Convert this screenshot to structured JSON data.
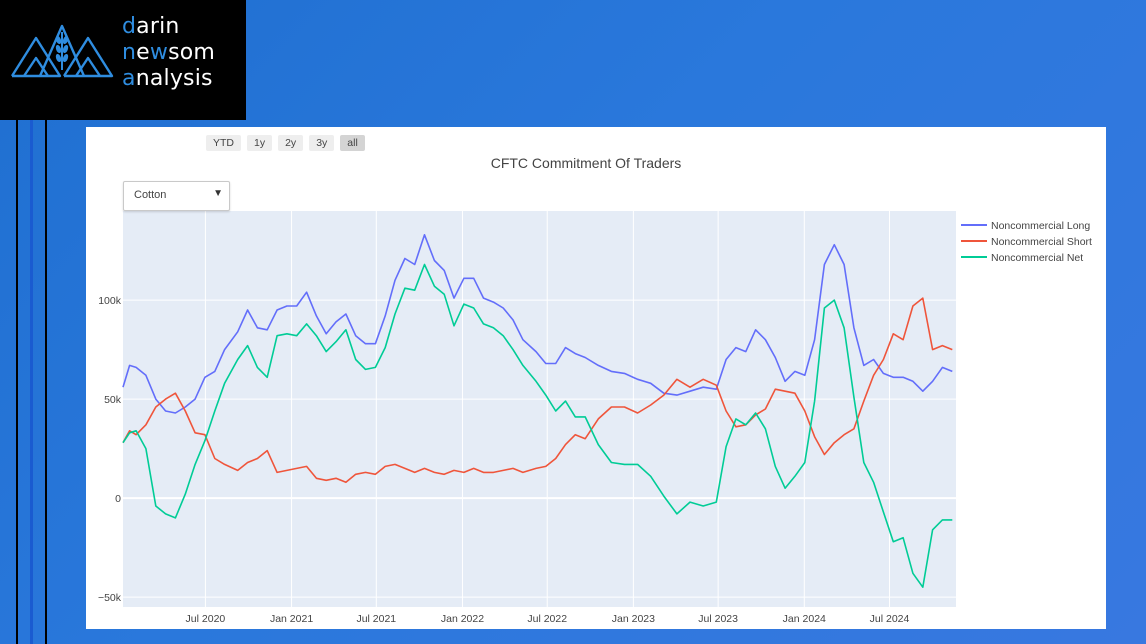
{
  "logo": {
    "line1_hl": "d",
    "line1_rest": "arin",
    "line2_a": "n",
    "line2_b": "e",
    "line2_hl": "w",
    "line2_rest": "som",
    "line3_hl": "a",
    "line3_rest": "nalysis"
  },
  "range_selector": [
    "YTD",
    "1y",
    "2y",
    "3y",
    "all"
  ],
  "range_selected": "all",
  "dropdown": {
    "value": "Cotton"
  },
  "colors": {
    "long": "#636efa",
    "short": "#ef553b",
    "net": "#00cc96",
    "plot_bg": "#e5ecf6",
    "accent": "#2f8de0"
  },
  "chart_data": {
    "type": "line",
    "title": "CFTC Commitment Of Traders",
    "xlabel": "",
    "ylabel": "",
    "x_ticks": [
      "Jul 2020",
      "Jan 2021",
      "Jul 2021",
      "Jan 2022",
      "Jul 2022",
      "Jan 2023",
      "Jul 2023",
      "Jan 2024",
      "Jul 2024"
    ],
    "x_tick_dates": [
      "2020-07-01",
      "2021-01-01",
      "2021-07-01",
      "2022-01-01",
      "2022-07-01",
      "2023-01-01",
      "2023-07-01",
      "2024-01-01",
      "2024-07-01"
    ],
    "xlim": [
      "2020-01-07",
      "2024-11-20"
    ],
    "ylim": [
      -55000,
      145000
    ],
    "y_ticks": [
      -50000,
      0,
      50000,
      100000
    ],
    "y_tick_labels": [
      "−50k",
      "0",
      "50k",
      "100k"
    ],
    "grid": true,
    "legend_position": "top-right",
    "series": [
      {
        "name": "Noncommercial Long",
        "points": [
          [
            "2020-01-07",
            56000
          ],
          [
            "2020-01-21",
            67000
          ],
          [
            "2020-02-04",
            66000
          ],
          [
            "2020-02-25",
            62000
          ],
          [
            "2020-03-17",
            50000
          ],
          [
            "2020-04-07",
            44000
          ],
          [
            "2020-04-28",
            43000
          ],
          [
            "2020-05-19",
            46000
          ],
          [
            "2020-06-09",
            50000
          ],
          [
            "2020-06-30",
            61000
          ],
          [
            "2020-07-21",
            64000
          ],
          [
            "2020-08-11",
            75000
          ],
          [
            "2020-09-08",
            84000
          ],
          [
            "2020-09-29",
            95000
          ],
          [
            "2020-10-20",
            86000
          ],
          [
            "2020-11-10",
            85000
          ],
          [
            "2020-12-01",
            95000
          ],
          [
            "2020-12-22",
            97000
          ],
          [
            "2021-01-12",
            97000
          ],
          [
            "2021-02-02",
            104000
          ],
          [
            "2021-02-23",
            92000
          ],
          [
            "2021-03-16",
            83000
          ],
          [
            "2021-04-06",
            89000
          ],
          [
            "2021-04-27",
            93000
          ],
          [
            "2021-05-18",
            82000
          ],
          [
            "2021-06-08",
            78000
          ],
          [
            "2021-06-29",
            78000
          ],
          [
            "2021-07-20",
            92000
          ],
          [
            "2021-08-10",
            110000
          ],
          [
            "2021-08-31",
            121000
          ],
          [
            "2021-09-21",
            118000
          ],
          [
            "2021-10-12",
            133000
          ],
          [
            "2021-11-02",
            120000
          ],
          [
            "2021-11-23",
            115000
          ],
          [
            "2021-12-14",
            101000
          ],
          [
            "2022-01-04",
            111000
          ],
          [
            "2022-01-25",
            111000
          ],
          [
            "2022-02-15",
            101000
          ],
          [
            "2022-03-08",
            99000
          ],
          [
            "2022-03-29",
            96000
          ],
          [
            "2022-04-19",
            90000
          ],
          [
            "2022-05-10",
            80000
          ],
          [
            "2022-06-07",
            74000
          ],
          [
            "2022-06-28",
            68000
          ],
          [
            "2022-07-19",
            68000
          ],
          [
            "2022-08-09",
            76000
          ],
          [
            "2022-08-30",
            73000
          ],
          [
            "2022-09-20",
            71000
          ],
          [
            "2022-10-18",
            67000
          ],
          [
            "2022-11-15",
            64000
          ],
          [
            "2022-12-13",
            63000
          ],
          [
            "2023-01-10",
            60000
          ],
          [
            "2023-02-07",
            58000
          ],
          [
            "2023-03-07",
            53000
          ],
          [
            "2023-04-04",
            52000
          ],
          [
            "2023-05-02",
            54000
          ],
          [
            "2023-05-30",
            56000
          ],
          [
            "2023-06-27",
            55000
          ],
          [
            "2023-07-18",
            70000
          ],
          [
            "2023-08-08",
            76000
          ],
          [
            "2023-08-29",
            74000
          ],
          [
            "2023-09-19",
            85000
          ],
          [
            "2023-10-10",
            80000
          ],
          [
            "2023-10-31",
            71000
          ],
          [
            "2023-11-21",
            59000
          ],
          [
            "2023-12-12",
            64000
          ],
          [
            "2024-01-02",
            62000
          ],
          [
            "2024-01-23",
            80000
          ],
          [
            "2024-02-13",
            118000
          ],
          [
            "2024-03-05",
            128000
          ],
          [
            "2024-03-26",
            118000
          ],
          [
            "2024-04-16",
            86000
          ],
          [
            "2024-05-07",
            67000
          ],
          [
            "2024-05-28",
            70000
          ],
          [
            "2024-06-18",
            63000
          ],
          [
            "2024-07-09",
            61000
          ],
          [
            "2024-07-30",
            61000
          ],
          [
            "2024-08-20",
            59000
          ],
          [
            "2024-09-10",
            54000
          ],
          [
            "2024-10-01",
            59000
          ],
          [
            "2024-10-22",
            66000
          ],
          [
            "2024-11-12",
            64000
          ]
        ]
      },
      {
        "name": "Noncommercial Short",
        "points": [
          [
            "2020-01-07",
            28000
          ],
          [
            "2020-01-21",
            34000
          ],
          [
            "2020-02-04",
            32000
          ],
          [
            "2020-02-25",
            37000
          ],
          [
            "2020-03-17",
            46000
          ],
          [
            "2020-04-07",
            50000
          ],
          [
            "2020-04-28",
            53000
          ],
          [
            "2020-05-19",
            44000
          ],
          [
            "2020-06-09",
            33000
          ],
          [
            "2020-06-30",
            32000
          ],
          [
            "2020-07-21",
            20000
          ],
          [
            "2020-08-11",
            17000
          ],
          [
            "2020-09-08",
            14000
          ],
          [
            "2020-09-29",
            18000
          ],
          [
            "2020-10-20",
            20000
          ],
          [
            "2020-11-10",
            24000
          ],
          [
            "2020-12-01",
            13000
          ],
          [
            "2020-12-22",
            14000
          ],
          [
            "2021-01-12",
            15000
          ],
          [
            "2021-02-02",
            16000
          ],
          [
            "2021-02-23",
            10000
          ],
          [
            "2021-03-16",
            9000
          ],
          [
            "2021-04-06",
            10000
          ],
          [
            "2021-04-27",
            8000
          ],
          [
            "2021-05-18",
            12000
          ],
          [
            "2021-06-08",
            13000
          ],
          [
            "2021-06-29",
            12000
          ],
          [
            "2021-07-20",
            16000
          ],
          [
            "2021-08-10",
            17000
          ],
          [
            "2021-08-31",
            15000
          ],
          [
            "2021-09-21",
            13000
          ],
          [
            "2021-10-12",
            15000
          ],
          [
            "2021-11-02",
            13000
          ],
          [
            "2021-11-23",
            12000
          ],
          [
            "2021-12-14",
            14000
          ],
          [
            "2022-01-04",
            13000
          ],
          [
            "2022-01-25",
            15000
          ],
          [
            "2022-02-15",
            13000
          ],
          [
            "2022-03-08",
            13000
          ],
          [
            "2022-03-29",
            14000
          ],
          [
            "2022-04-19",
            15000
          ],
          [
            "2022-05-10",
            13000
          ],
          [
            "2022-06-07",
            15000
          ],
          [
            "2022-06-28",
            16000
          ],
          [
            "2022-07-19",
            20000
          ],
          [
            "2022-08-09",
            27000
          ],
          [
            "2022-08-30",
            32000
          ],
          [
            "2022-09-20",
            30000
          ],
          [
            "2022-10-18",
            40000
          ],
          [
            "2022-11-15",
            46000
          ],
          [
            "2022-12-13",
            46000
          ],
          [
            "2023-01-10",
            43000
          ],
          [
            "2023-02-07",
            47000
          ],
          [
            "2023-03-07",
            52000
          ],
          [
            "2023-04-04",
            60000
          ],
          [
            "2023-05-02",
            56000
          ],
          [
            "2023-05-30",
            60000
          ],
          [
            "2023-06-27",
            57000
          ],
          [
            "2023-07-18",
            44000
          ],
          [
            "2023-08-08",
            36000
          ],
          [
            "2023-08-29",
            37000
          ],
          [
            "2023-09-19",
            42000
          ],
          [
            "2023-10-10",
            45000
          ],
          [
            "2023-10-31",
            55000
          ],
          [
            "2023-11-21",
            54000
          ],
          [
            "2023-12-12",
            53000
          ],
          [
            "2024-01-02",
            44000
          ],
          [
            "2024-01-23",
            31000
          ],
          [
            "2024-02-13",
            22000
          ],
          [
            "2024-03-05",
            28000
          ],
          [
            "2024-03-26",
            32000
          ],
          [
            "2024-04-16",
            35000
          ],
          [
            "2024-05-07",
            49000
          ],
          [
            "2024-05-28",
            62000
          ],
          [
            "2024-06-18",
            70000
          ],
          [
            "2024-07-09",
            83000
          ],
          [
            "2024-07-30",
            80000
          ],
          [
            "2024-08-20",
            97000
          ],
          [
            "2024-09-10",
            101000
          ],
          [
            "2024-10-01",
            75000
          ],
          [
            "2024-10-22",
            77000
          ],
          [
            "2024-11-12",
            75000
          ]
        ]
      },
      {
        "name": "Noncommercial Net",
        "points": [
          [
            "2020-01-07",
            28000
          ],
          [
            "2020-01-21",
            33000
          ],
          [
            "2020-02-04",
            34000
          ],
          [
            "2020-02-25",
            25000
          ],
          [
            "2020-03-17",
            -4000
          ],
          [
            "2020-04-07",
            -8000
          ],
          [
            "2020-04-28",
            -10000
          ],
          [
            "2020-05-19",
            2000
          ],
          [
            "2020-06-09",
            17000
          ],
          [
            "2020-06-30",
            29000
          ],
          [
            "2020-07-21",
            44000
          ],
          [
            "2020-08-11",
            58000
          ],
          [
            "2020-09-08",
            70000
          ],
          [
            "2020-09-29",
            77000
          ],
          [
            "2020-10-20",
            66000
          ],
          [
            "2020-11-10",
            61000
          ],
          [
            "2020-12-01",
            82000
          ],
          [
            "2020-12-22",
            83000
          ],
          [
            "2021-01-12",
            82000
          ],
          [
            "2021-02-02",
            88000
          ],
          [
            "2021-02-23",
            82000
          ],
          [
            "2021-03-16",
            74000
          ],
          [
            "2021-04-06",
            79000
          ],
          [
            "2021-04-27",
            85000
          ],
          [
            "2021-05-18",
            70000
          ],
          [
            "2021-06-08",
            65000
          ],
          [
            "2021-06-29",
            66000
          ],
          [
            "2021-07-20",
            76000
          ],
          [
            "2021-08-10",
            93000
          ],
          [
            "2021-08-31",
            106000
          ],
          [
            "2021-09-21",
            105000
          ],
          [
            "2021-10-12",
            118000
          ],
          [
            "2021-11-02",
            107000
          ],
          [
            "2021-11-23",
            103000
          ],
          [
            "2021-12-14",
            87000
          ],
          [
            "2022-01-04",
            98000
          ],
          [
            "2022-01-25",
            96000
          ],
          [
            "2022-02-15",
            88000
          ],
          [
            "2022-03-08",
            86000
          ],
          [
            "2022-03-29",
            82000
          ],
          [
            "2022-04-19",
            75000
          ],
          [
            "2022-05-10",
            67000
          ],
          [
            "2022-06-07",
            59000
          ],
          [
            "2022-06-28",
            52000
          ],
          [
            "2022-07-19",
            44000
          ],
          [
            "2022-08-09",
            49000
          ],
          [
            "2022-08-30",
            41000
          ],
          [
            "2022-09-20",
            41000
          ],
          [
            "2022-10-18",
            27000
          ],
          [
            "2022-11-15",
            18000
          ],
          [
            "2022-12-13",
            17000
          ],
          [
            "2023-01-10",
            17000
          ],
          [
            "2023-02-07",
            11000
          ],
          [
            "2023-03-07",
            1000
          ],
          [
            "2023-04-04",
            -8000
          ],
          [
            "2023-05-02",
            -2000
          ],
          [
            "2023-05-30",
            -4000
          ],
          [
            "2023-06-27",
            -2000
          ],
          [
            "2023-07-18",
            26000
          ],
          [
            "2023-08-08",
            40000
          ],
          [
            "2023-08-29",
            37000
          ],
          [
            "2023-09-19",
            43000
          ],
          [
            "2023-10-10",
            35000
          ],
          [
            "2023-10-31",
            16000
          ],
          [
            "2023-11-21",
            5000
          ],
          [
            "2023-12-12",
            11000
          ],
          [
            "2024-01-02",
            18000
          ],
          [
            "2024-01-23",
            49000
          ],
          [
            "2024-02-13",
            96000
          ],
          [
            "2024-03-05",
            100000
          ],
          [
            "2024-03-26",
            86000
          ],
          [
            "2024-04-16",
            51000
          ],
          [
            "2024-05-07",
            18000
          ],
          [
            "2024-05-28",
            8000
          ],
          [
            "2024-06-18",
            -7000
          ],
          [
            "2024-07-09",
            -22000
          ],
          [
            "2024-07-30",
            -20000
          ],
          [
            "2024-08-20",
            -38000
          ],
          [
            "2024-09-10",
            -45000
          ],
          [
            "2024-10-01",
            -16000
          ],
          [
            "2024-10-22",
            -11000
          ],
          [
            "2024-11-12",
            -11000
          ]
        ]
      }
    ]
  }
}
